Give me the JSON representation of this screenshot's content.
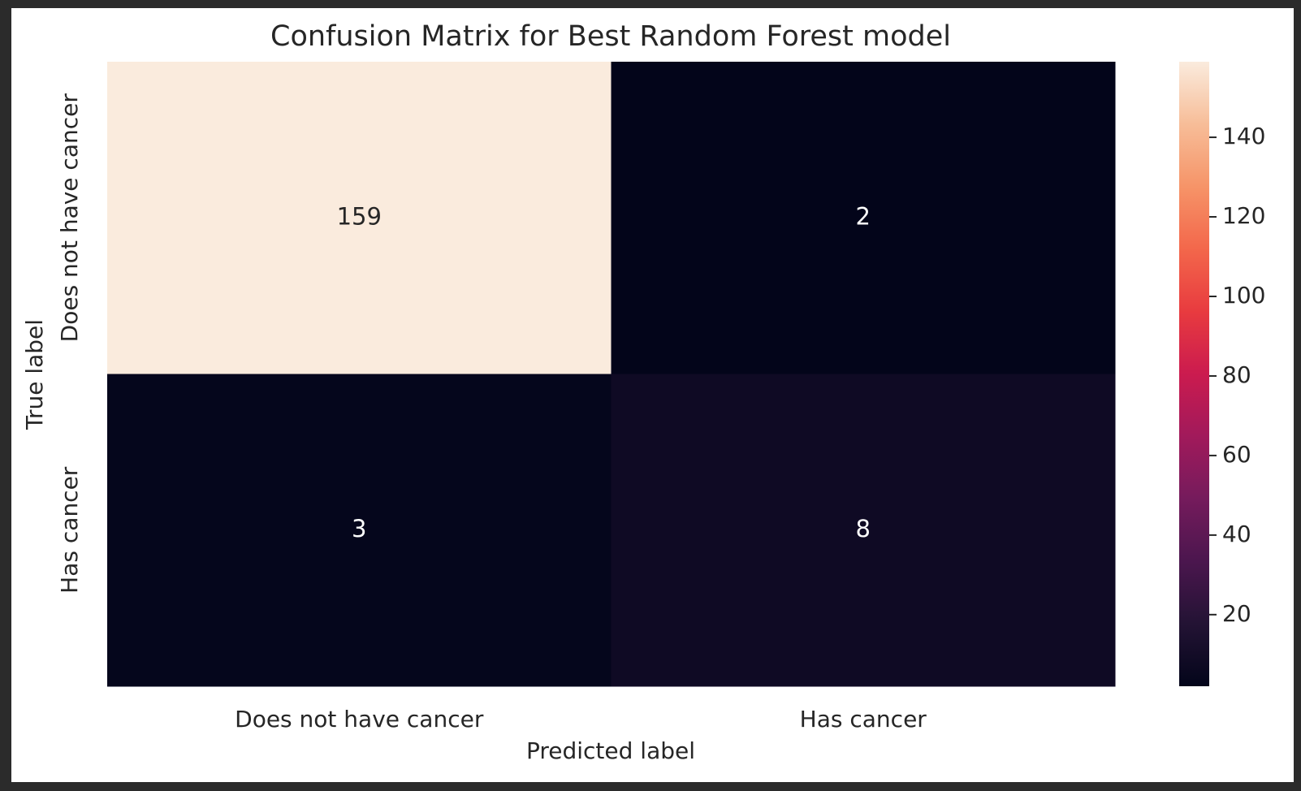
{
  "chart_data": {
    "type": "heatmap",
    "title": "Confusion Matrix for Best Random Forest model",
    "xlabel": "Predicted label",
    "ylabel": "True label",
    "x_categories": [
      "Does not have cancer",
      "Has cancer"
    ],
    "y_categories": [
      "Does not have cancer",
      "Has cancer"
    ],
    "values": [
      [
        159,
        2
      ],
      [
        3,
        8
      ]
    ],
    "colormap": "rocket",
    "clim": [
      2,
      159
    ],
    "cticks": [
      20,
      40,
      60,
      80,
      100,
      120,
      140
    ]
  }
}
